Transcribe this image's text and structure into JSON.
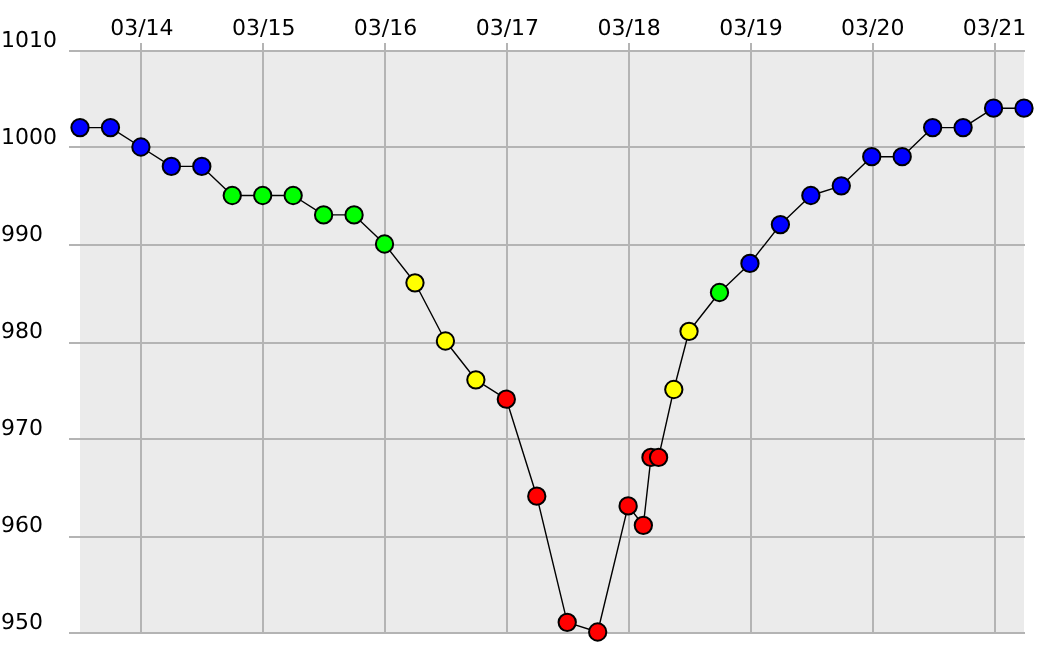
{
  "chart_data": {
    "type": "line",
    "marker": "circle",
    "grid": true,
    "x": [
      "--03-13T12:00",
      "--03-13T18:00",
      "--03-14T00:00",
      "--03-14T06:00",
      "--03-14T12:00",
      "--03-14T18:00",
      "--03-15T00:00",
      "--03-15T06:00",
      "--03-15T12:00",
      "--03-15T18:00",
      "--03-16T00:00",
      "--03-16T06:00",
      "--03-16T12:00",
      "--03-16T18:00",
      "--03-17T00:00",
      "--03-17T06:00",
      "--03-17T12:00",
      "--03-17T18:00",
      "--03-18T00:00",
      "--03-18T03:00",
      "--03-18T04:30",
      "--03-18T06:00",
      "--03-18T09:00",
      "--03-18T12:00",
      "--03-18T18:00",
      "--03-19T00:00",
      "--03-19T06:00",
      "--03-19T12:00",
      "--03-19T18:00",
      "--03-20T00:00",
      "--03-20T06:00",
      "--03-20T12:00",
      "--03-20T18:00",
      "--03-21T00:00",
      "--03-21T06:00"
    ],
    "series": [
      {
        "color": "#000000",
        "values": [
          1002,
          1002,
          1000,
          998,
          998,
          995,
          995,
          995,
          993,
          993,
          990,
          986,
          980,
          976,
          974,
          964,
          951,
          950,
          963,
          961,
          968,
          968,
          975,
          981,
          985,
          988,
          992,
          995,
          996,
          999,
          999,
          1002,
          1002,
          1004,
          1004
        ],
        "colors": [
          "#0000ff",
          "#0000ff",
          "#0000ff",
          "#0000ff",
          "#0000ff",
          "#00ff00",
          "#00ff00",
          "#00ff00",
          "#00ff00",
          "#00ff00",
          "#00ff00",
          "#ffff00",
          "#ffff00",
          "#ffff00",
          "#ff0000",
          "#ff0000",
          "#ff0000",
          "#ff0000",
          "#ff0000",
          "#ff0000",
          "#ff0000",
          "#ff0000",
          "#ffff00",
          "#ffff00",
          "#00ff00",
          "#0000ff",
          "#0000ff",
          "#0000ff",
          "#0000ff",
          "#0000ff",
          "#0000ff",
          "#0000ff",
          "#0000ff",
          "#0000ff",
          "#0000ff"
        ]
      }
    ],
    "xlim": [
      "--03-13T12:00",
      "--03-21T06:00"
    ],
    "xticks": [
      {
        "value": "--03-14",
        "label": "03/14"
      },
      {
        "value": "--03-15",
        "label": "03/15"
      },
      {
        "value": "--03-16",
        "label": "03/16"
      },
      {
        "value": "--03-17",
        "label": "03/17"
      },
      {
        "value": "--03-18",
        "label": "03/18"
      },
      {
        "value": "--03-19",
        "label": "03/19"
      },
      {
        "value": "--03-20",
        "label": "03/20"
      },
      {
        "value": "--03-21",
        "label": "03/21"
      }
    ],
    "ylim": [
      950,
      1010
    ],
    "yticks": [
      950,
      960,
      970,
      980,
      990,
      1000,
      1010
    ]
  }
}
